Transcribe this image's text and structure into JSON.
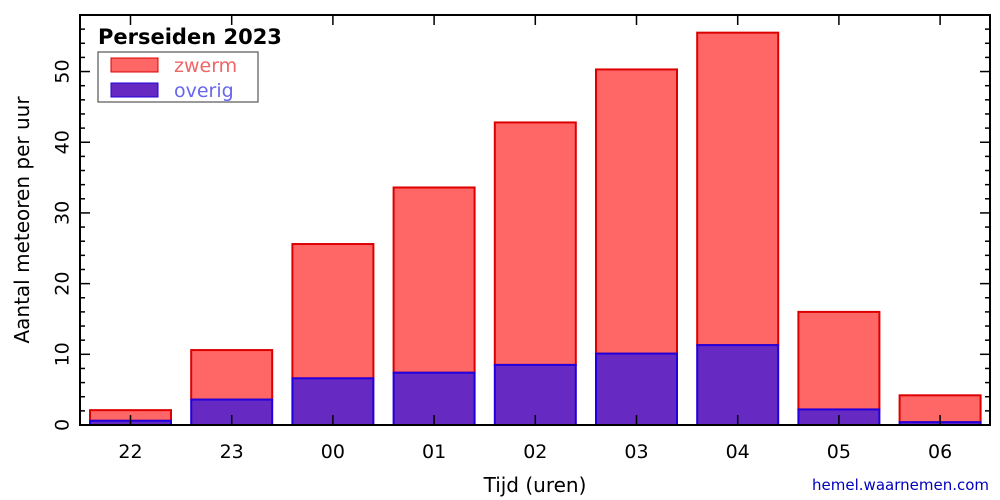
{
  "chart_data": {
    "type": "bar",
    "stacked": true,
    "title": "Perseiden 2023",
    "xlabel": "Tijd (uren)",
    "ylabel": "Aantal meteoren per uur",
    "categories": [
      "22",
      "23",
      "00",
      "01",
      "02",
      "03",
      "04",
      "05",
      "06"
    ],
    "ylim": [
      0,
      58
    ],
    "yticks": [
      0,
      10,
      20,
      30,
      40,
      50
    ],
    "series": [
      {
        "name": "zwerm",
        "values": [
          1.5,
          7,
          19,
          26.2,
          34.3,
          40.2,
          44.2,
          13.8,
          3.8
        ],
        "fill": "#ff6666",
        "stroke": "#dd0000",
        "label_color": "#ee6666"
      },
      {
        "name": "overig",
        "values": [
          0.6,
          3.6,
          6.6,
          7.4,
          8.5,
          10.1,
          11.3,
          2.2,
          0.4
        ],
        "fill": "#6629c2",
        "stroke": "#2200dd",
        "label_color": "#6666ee"
      }
    ],
    "legend_position": "top-left",
    "grid": false
  },
  "source": "hemel.waarnemen.com",
  "colors": {
    "source_text": "#0000bb"
  }
}
